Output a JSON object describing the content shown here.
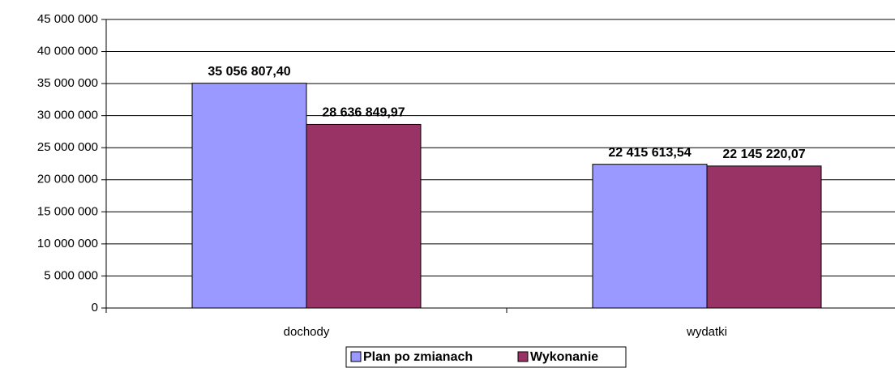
{
  "chart_data": {
    "type": "bar",
    "categories": [
      "dochody",
      "wydatki"
    ],
    "series": [
      {
        "name": "Plan po zmianach",
        "color": "#9999ff",
        "values": [
          35056807.4,
          22415613.54
        ],
        "value_labels": [
          "35 056 807,40",
          "22 415 613,54"
        ]
      },
      {
        "name": "Wykonanie",
        "color": "#993366",
        "values": [
          28636849.97,
          22145220.07
        ],
        "value_labels": [
          "28 636 849,97",
          "22 145 220,07"
        ]
      }
    ],
    "ylim": [
      0,
      45000000
    ],
    "yticks": [
      0,
      {
        "value": 5000000,
        "label": "5 000 000"
      },
      {
        "value": 10000000,
        "label": "10 000 000"
      },
      {
        "value": 15000000,
        "label": "15 000 000"
      },
      {
        "value": 20000000,
        "label": "20 000 000"
      },
      {
        "value": 25000000,
        "label": "25 000 000"
      },
      {
        "value": 30000000,
        "label": "30 000 000"
      },
      {
        "value": 35000000,
        "label": "35 000 000"
      },
      {
        "value": 40000000,
        "label": "40 000 000"
      },
      {
        "value": 45000000,
        "label": "45 000 000"
      }
    ],
    "grid": true,
    "legend": "bottom"
  }
}
